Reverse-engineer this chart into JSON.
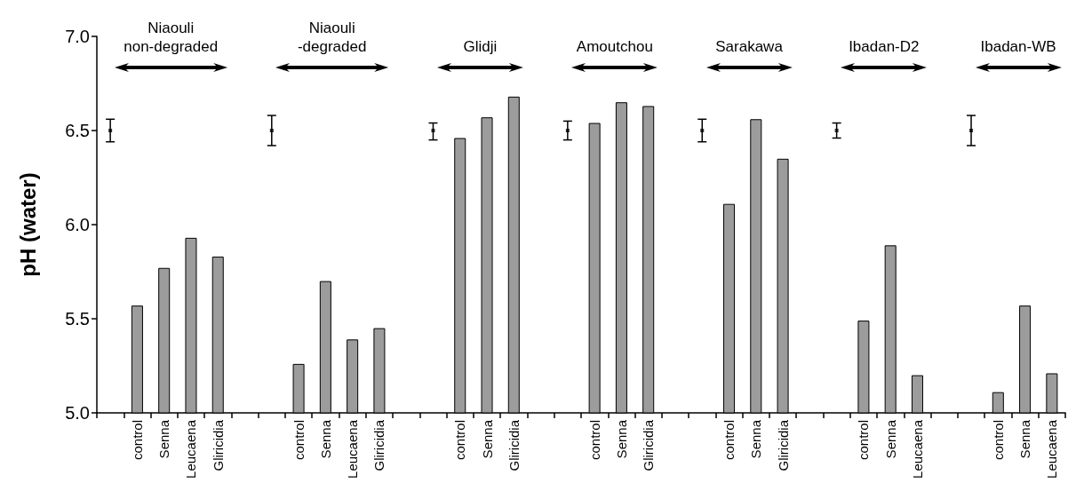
{
  "chart_data": {
    "type": "bar",
    "categories": [
      null,
      "control",
      "Senna",
      "Leucaena",
      "Gliricidia",
      null,
      null,
      "control",
      "Senna",
      "Leucaena",
      "Gliricidia",
      null,
      null,
      "control",
      "Senna",
      "Gliricidia",
      null,
      null,
      "control",
      "Senna",
      "Gliricidia",
      null,
      null,
      "control",
      "Senna",
      "Gliricidia",
      null,
      null,
      "control",
      "Senna",
      "Leucaena",
      null,
      null,
      "control",
      "Senna",
      "Leucaena"
    ],
    "series": [
      {
        "color": "#9c9c9c",
        "values": [
          null,
          5.57,
          5.77,
          5.93,
          5.83,
          null,
          null,
          5.26,
          5.7,
          5.39,
          5.45,
          null,
          null,
          6.46,
          6.57,
          6.68,
          null,
          null,
          6.54,
          6.65,
          6.63,
          null,
          null,
          6.11,
          6.56,
          6.35,
          null,
          null,
          5.49,
          5.89,
          5.2,
          null,
          null,
          5.11,
          5.57,
          5.21
        ]
      },
      {
        "type": "scatter",
        "marker": "square",
        "color": "#000000",
        "values": [
          6.5,
          null,
          null,
          null,
          null,
          null,
          6.5,
          null,
          null,
          null,
          null,
          null,
          6.5,
          null,
          null,
          null,
          null,
          6.5,
          null,
          null,
          null,
          null,
          6.5,
          null,
          null,
          null,
          null,
          6.5,
          null,
          null,
          null,
          null,
          6.5,
          null,
          null,
          null
        ],
        "errors": [
          [
            6.44,
            6.56
          ],
          null,
          null,
          null,
          null,
          null,
          [
            6.42,
            6.58
          ],
          null,
          null,
          null,
          null,
          null,
          [
            6.45,
            6.54
          ],
          null,
          null,
          null,
          null,
          [
            6.45,
            6.55
          ],
          null,
          null,
          null,
          null,
          [
            6.44,
            6.56
          ],
          null,
          null,
          null,
          null,
          [
            6.46,
            6.54
          ],
          null,
          null,
          null,
          null,
          [
            6.42,
            6.58
          ],
          null,
          null,
          null
        ]
      }
    ],
    "ylabel": "pH (water)",
    "ylim": [
      5,
      7
    ],
    "yticks": [
      {
        "value": 5,
        "label": "5.0"
      },
      {
        "value": 5.5,
        "label": "5.5"
      },
      {
        "value": 6,
        "label": "6.0"
      },
      {
        "value": 6.5,
        "label": "6.5"
      },
      {
        "value": 7,
        "label": "7.0"
      }
    ],
    "grid": false,
    "annotations": [
      "Niaouli\nnon-degraded",
      "Niaouli\n-degraded",
      "Glidji",
      "Amoutchou",
      "Sarakawa",
      "Ibadan-D2",
      "Ibadan-WB"
    ]
  }
}
